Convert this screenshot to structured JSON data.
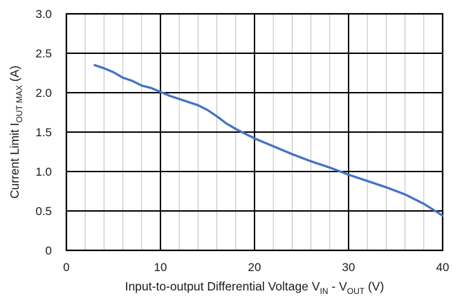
{
  "chart_data": {
    "type": "line",
    "title": "",
    "xlabel": {
      "prefix": "Input-to-output Differential Voltage V",
      "sub1": "IN",
      "middle": " - V",
      "sub2": "OUT",
      "suffix": " (V)"
    },
    "ylabel": {
      "prefix": "Current Limit I",
      "sub": "OUT MAX",
      "suffix": " (A)"
    },
    "xlim": [
      0,
      40
    ],
    "ylim": [
      0,
      3.0
    ],
    "x_major_ticks": [
      0,
      10,
      20,
      30,
      40
    ],
    "x_tick_labels": [
      "0",
      "10",
      "20",
      "30",
      "40"
    ],
    "x_minor_step": 2,
    "y_major_ticks": [
      0,
      0.5,
      1.0,
      1.5,
      2.0,
      2.5,
      3.0
    ],
    "y_tick_labels": [
      "0",
      "0.5",
      "1.0",
      "1.5",
      "2.0",
      "2.5",
      "3.0"
    ],
    "grid": true,
    "series": [
      {
        "color": "#4472C4",
        "x": [
          3,
          4,
          5,
          6,
          7,
          8,
          9,
          10,
          11,
          12,
          13,
          14,
          15,
          16,
          17,
          18,
          19,
          20,
          22,
          24,
          26,
          28,
          30,
          32,
          34,
          36,
          38,
          40
        ],
        "y": [
          2.35,
          2.31,
          2.26,
          2.19,
          2.15,
          2.09,
          2.06,
          2.01,
          1.96,
          1.92,
          1.88,
          1.84,
          1.78,
          1.7,
          1.61,
          1.54,
          1.48,
          1.42,
          1.32,
          1.22,
          1.13,
          1.05,
          0.96,
          0.88,
          0.8,
          0.71,
          0.59,
          0.44
        ]
      }
    ]
  }
}
